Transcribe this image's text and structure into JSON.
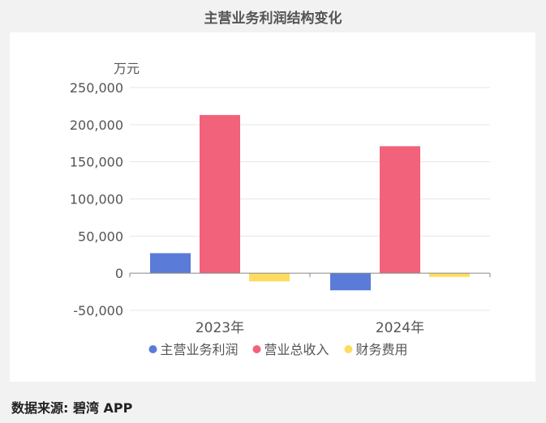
{
  "title": "主营业务利润结构变化",
  "source": "数据来源: 碧湾 APP",
  "chart_data": {
    "type": "bar",
    "title": "主营业务利润结构变化",
    "ylabel": "万元",
    "xlabel": "",
    "categories": [
      "2023年",
      "2024年"
    ],
    "ylim": [
      -50000,
      250000
    ],
    "yticks": [
      250000,
      200000,
      150000,
      100000,
      50000,
      0,
      -50000
    ],
    "ytick_labels": [
      "250,000",
      "200,000",
      "150,000",
      "100,000",
      "50,000",
      "0",
      "-50,000"
    ],
    "grid": true,
    "legend_position": "bottom",
    "series": [
      {
        "name": "主营业务利润",
        "color": "#5b7bd8",
        "values": [
          27000,
          -23000
        ]
      },
      {
        "name": "营业总收入",
        "color": "#f2627b",
        "values": [
          213000,
          171000
        ]
      },
      {
        "name": "财务费用",
        "color": "#fddd60",
        "values": [
          -11000,
          -5000
        ]
      }
    ]
  }
}
